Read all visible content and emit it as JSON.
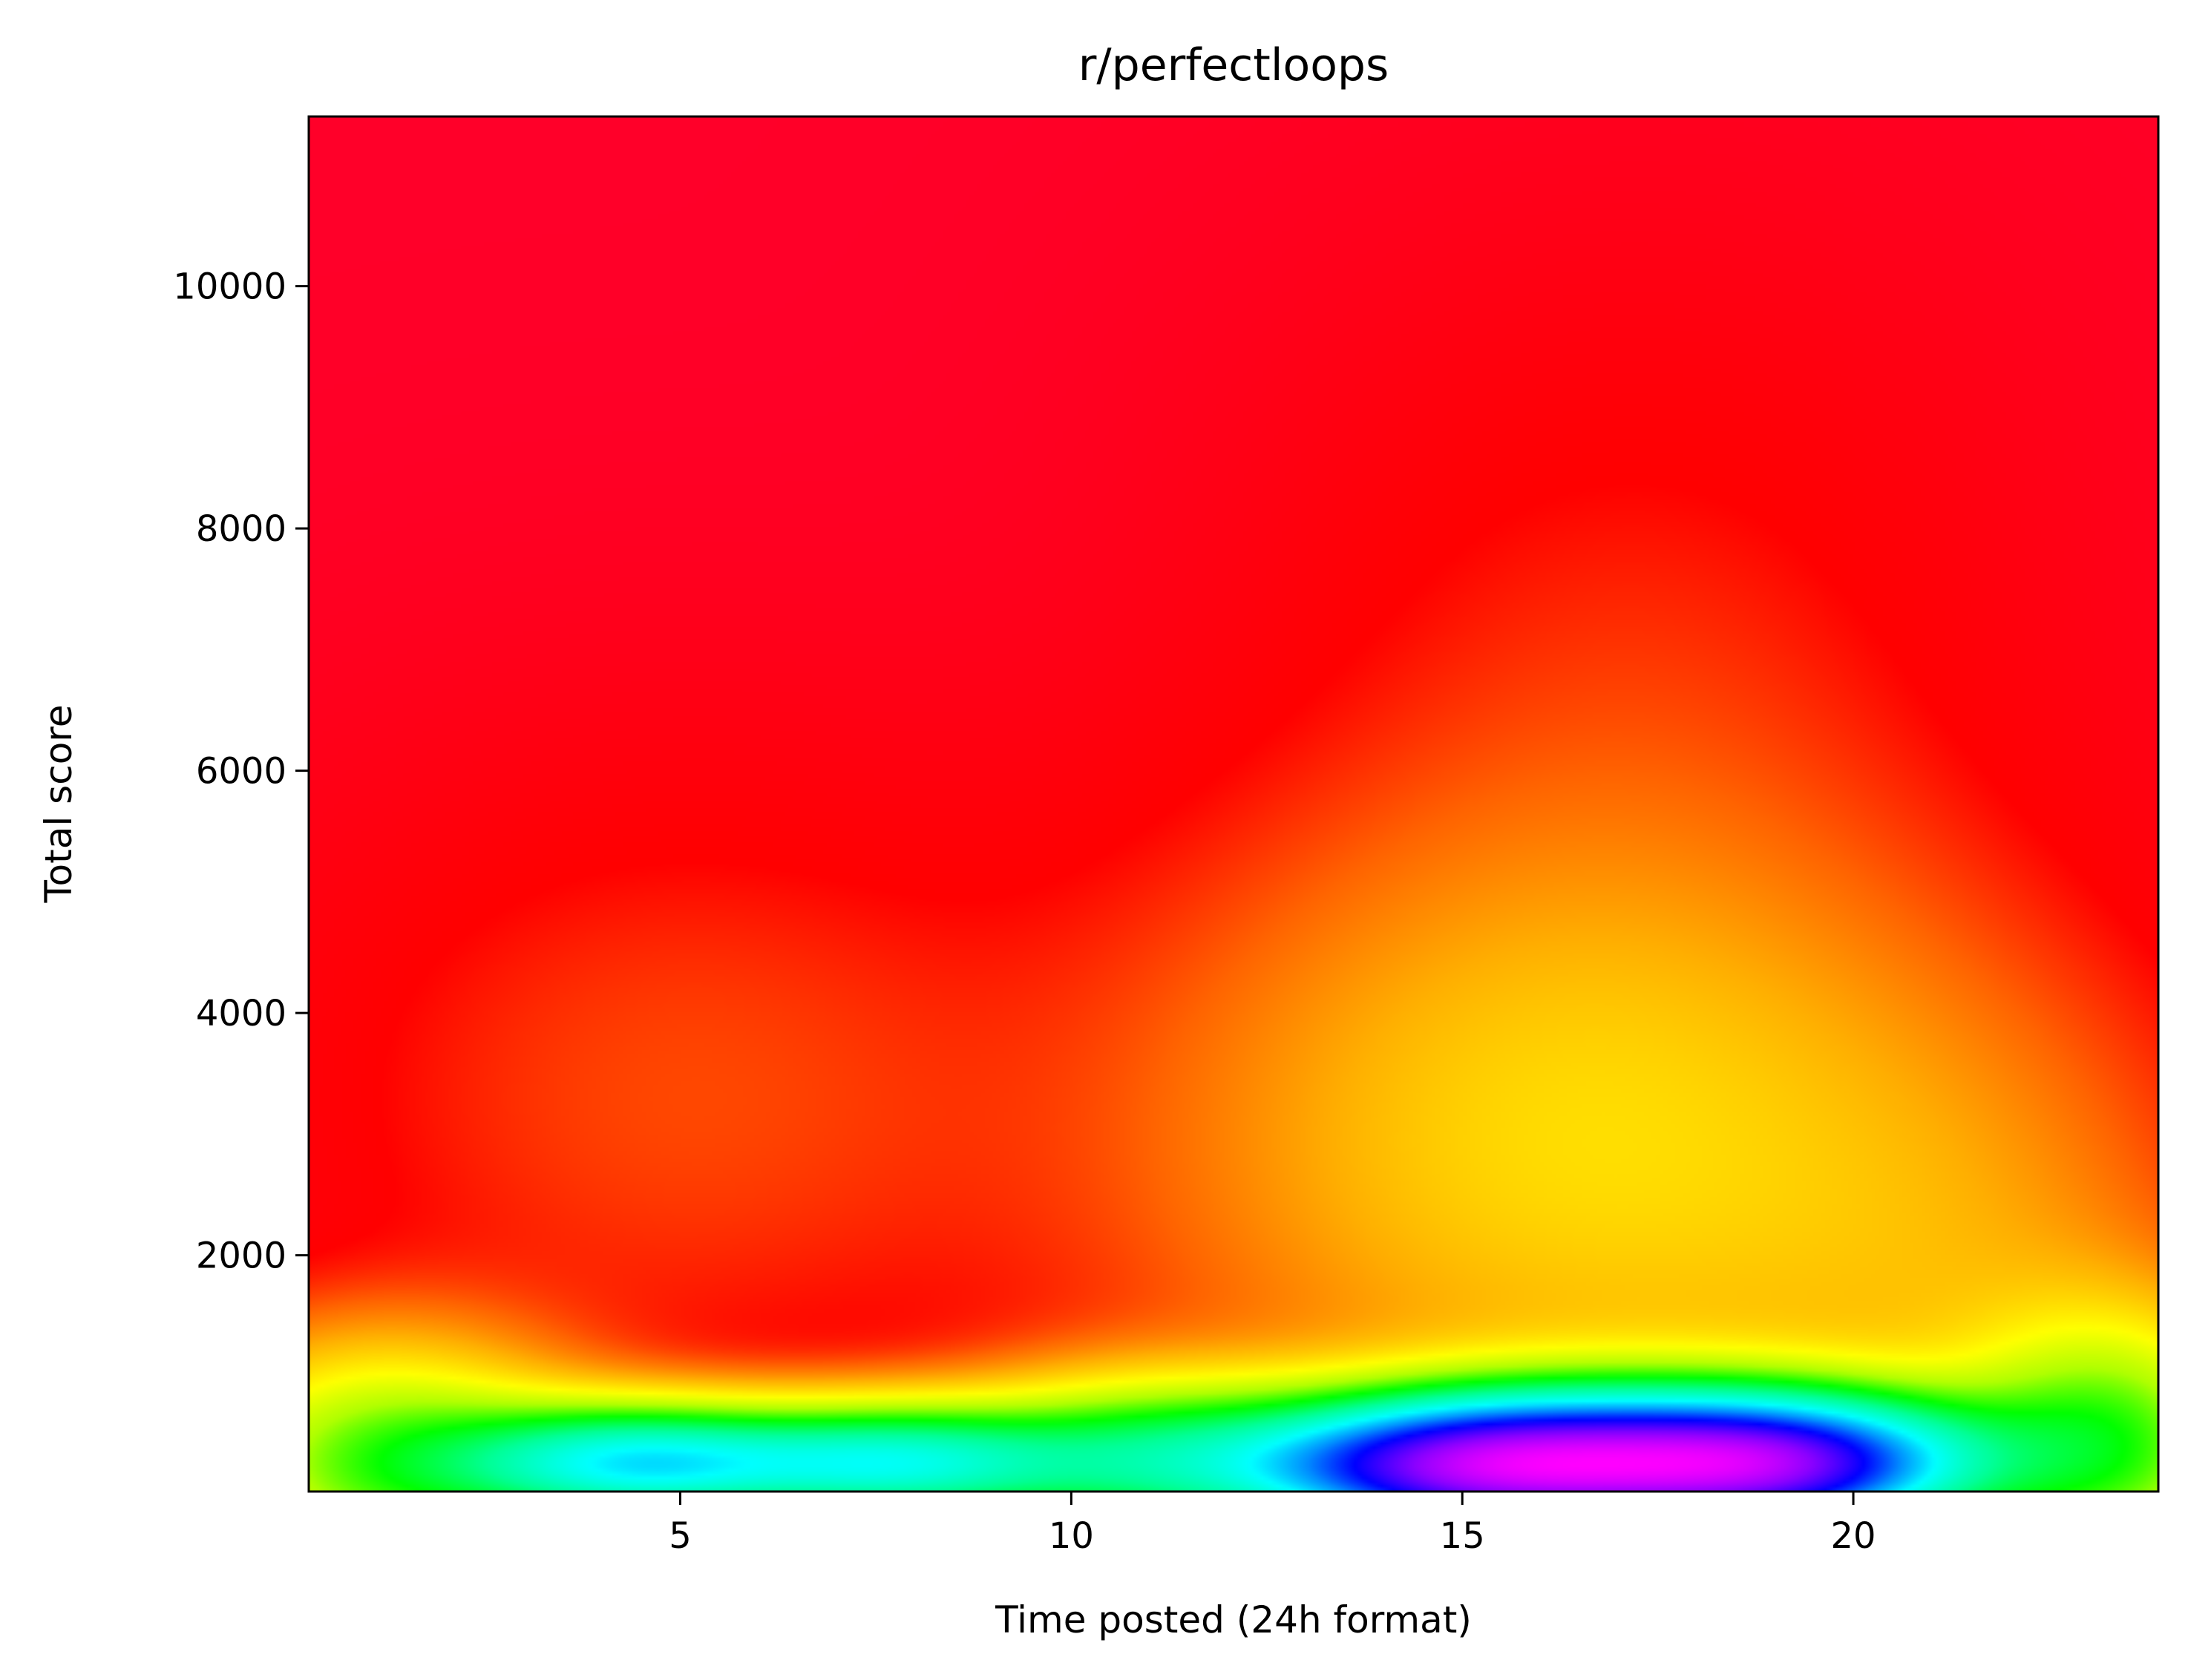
{
  "chart_data": {
    "type": "heatmap",
    "title": "r/perfectloops",
    "xlabel": "Time posted (24h format)",
    "ylabel": "Total score",
    "xlim": [
      0.25,
      23.9
    ],
    "ylim": [
      50,
      11400
    ],
    "xticks": [
      5,
      10,
      15,
      20
    ],
    "yticks": [
      2000,
      4000,
      6000,
      8000,
      10000
    ],
    "grid": false,
    "legend": "none",
    "colormap": "gist_rainbow (magenta = highest density, red = lowest)",
    "density_peaks": [
      {
        "x": 17.0,
        "y": 300,
        "level": "max"
      },
      {
        "x": 4.5,
        "y": 300,
        "level": "high"
      },
      {
        "x": 16.5,
        "y": 2800,
        "level": "medium"
      },
      {
        "x": 5.0,
        "y": 3200,
        "level": "low"
      }
    ]
  }
}
